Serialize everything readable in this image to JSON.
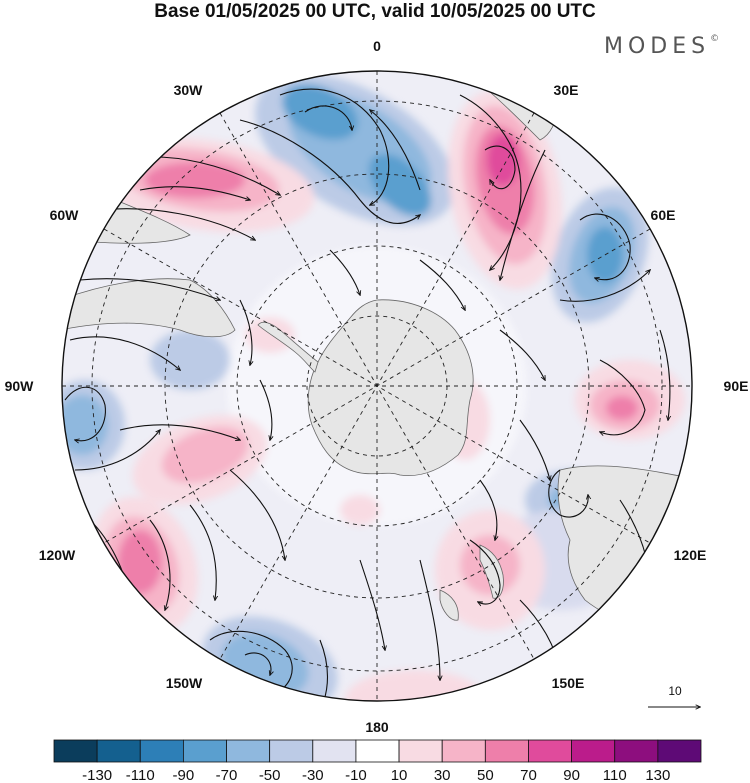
{
  "title": "Base 01/05/2025 00 UTC, valid 10/05/2025 00 UTC",
  "logo": {
    "text": "MODES",
    "mark": "©"
  },
  "map": {
    "projection": "south-polar-stereographic",
    "longitude_labels": [
      {
        "id": "lon-0",
        "text": "0"
      },
      {
        "id": "lon-30e",
        "text": "30E"
      },
      {
        "id": "lon-60e",
        "text": "60E"
      },
      {
        "id": "lon-90e",
        "text": "90E"
      },
      {
        "id": "lon-120e",
        "text": "120E"
      },
      {
        "id": "lon-150e",
        "text": "150E"
      },
      {
        "id": "lon-180",
        "text": "180"
      },
      {
        "id": "lon-150w",
        "text": "150W"
      },
      {
        "id": "lon-120w",
        "text": "120W"
      },
      {
        "id": "lon-90w",
        "text": "90W"
      },
      {
        "id": "lon-60w",
        "text": "60W"
      },
      {
        "id": "lon-30w",
        "text": "30W"
      }
    ],
    "land_color": "#e6e6e6",
    "grid_style": "dashed"
  },
  "vector_reference": {
    "label": "10"
  },
  "colorbar": {
    "levels": [
      "-130",
      "-110",
      "-90",
      "-70",
      "-50",
      "-30",
      "-10",
      "10",
      "30",
      "50",
      "70",
      "90",
      "110",
      "130"
    ],
    "colors": [
      "#0b3d5c",
      "#14608f",
      "#2d7fb7",
      "#5a9fcf",
      "#8fb8de",
      "#bccbe6",
      "#e2e3f1",
      "#ffffff",
      "#f8dbe3",
      "#f6b4c8",
      "#ee7faa",
      "#e04b9c",
      "#bb1c8b",
      "#8d0e7e",
      "#5e0a76"
    ]
  }
}
